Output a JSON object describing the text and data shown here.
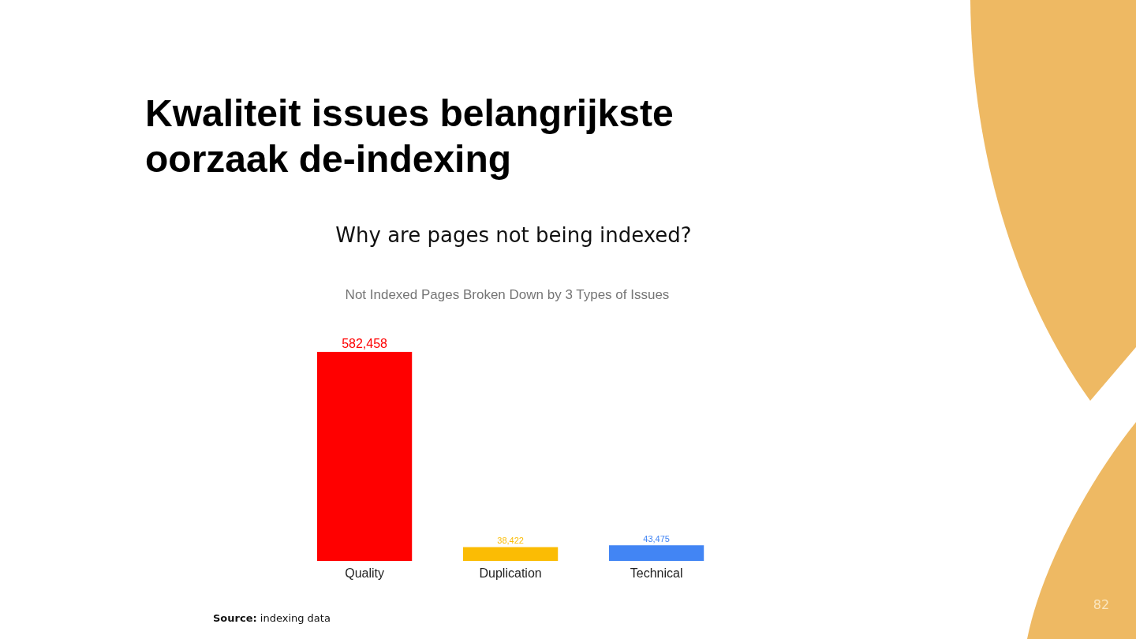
{
  "chart_data": {
    "type": "bar",
    "title": "Kwaliteit issues belangrijkste oorzaak de-indexing",
    "subtitle": "Why are pages not being indexed?",
    "categories": [
      "Quality",
      "Duplication",
      "Technical"
    ],
    "values": [
      582458,
      38422,
      43475
    ],
    "colors": [
      "#ff0000",
      "#fbbc04",
      "#4285f4"
    ],
    "value_labels": [
      "582,458",
      "38,422",
      "43,475"
    ],
    "annotations": [
      "Not Indexed Pages Broken Down by 3 Types of Issues",
      "Source: indexing data",
      "82"
    ]
  }
}
